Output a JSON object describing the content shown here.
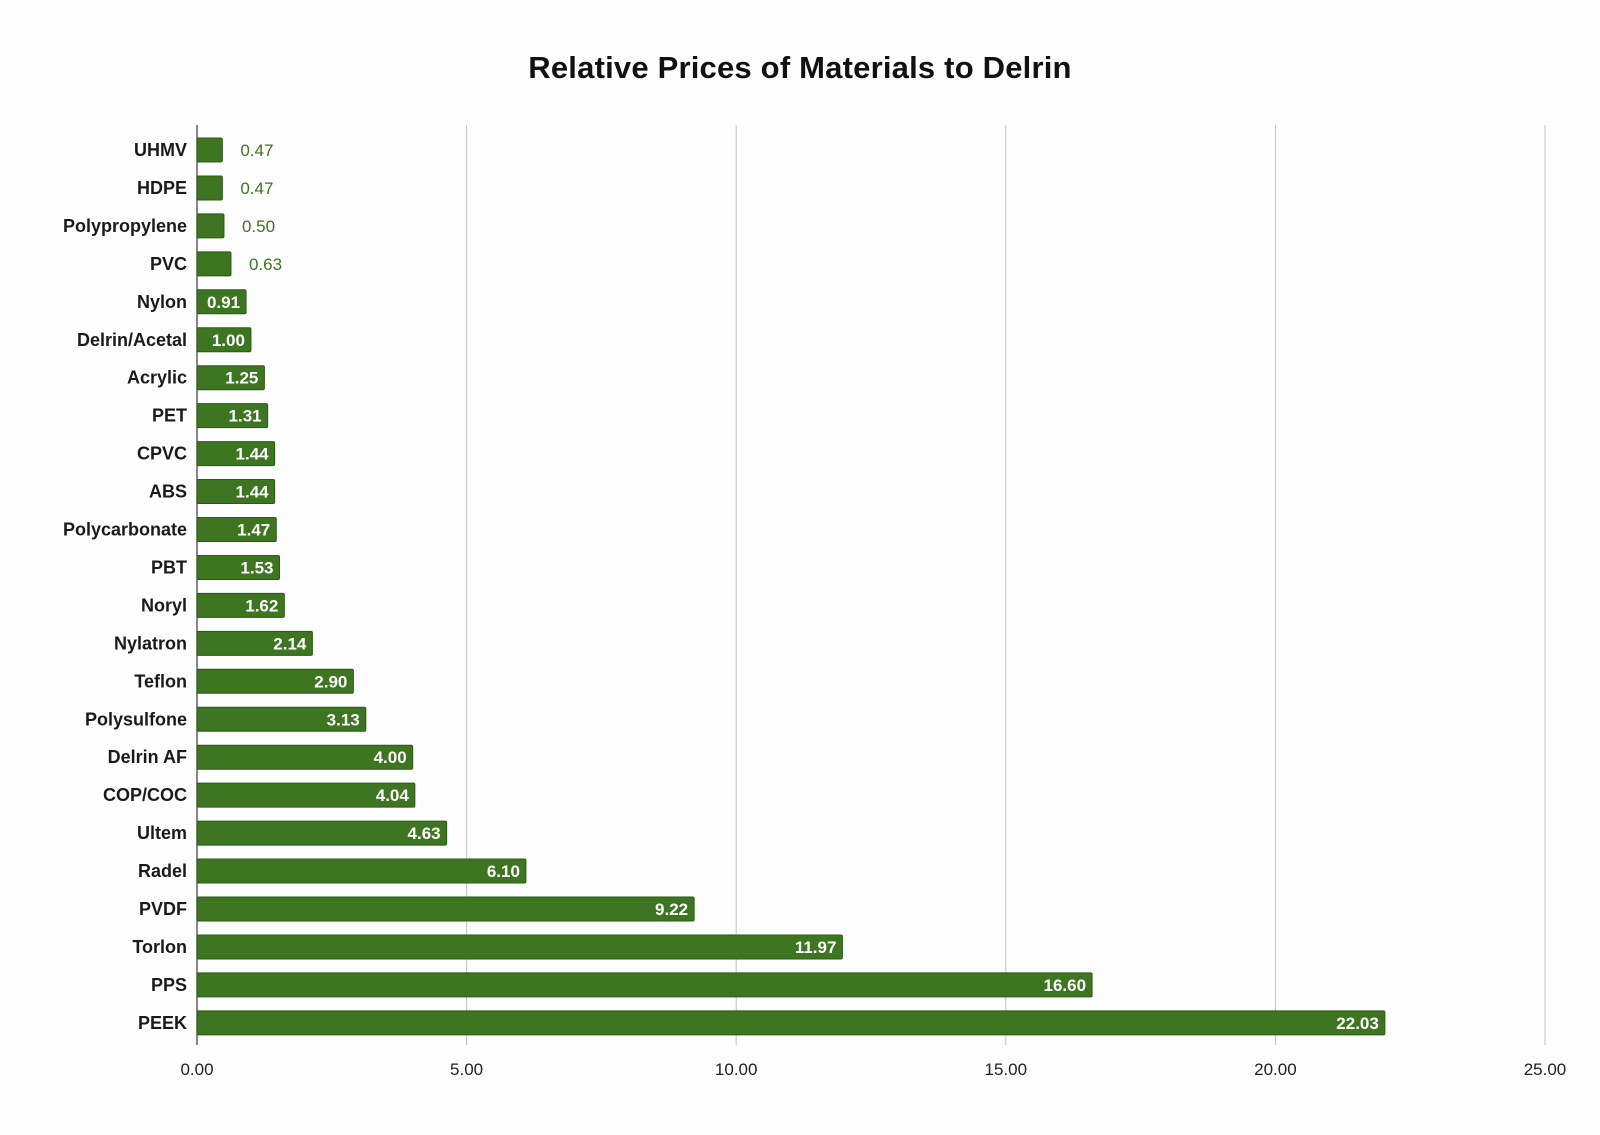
{
  "chart_data": {
    "type": "bar",
    "orientation": "horizontal",
    "title": "Relative Prices of Materials to Delrin",
    "xlabel": "",
    "ylabel": "",
    "xlim": [
      0,
      25
    ],
    "x_ticks": [
      "0.00",
      "5.00",
      "10.00",
      "15.00",
      "20.00",
      "25.00"
    ],
    "grid": "vertical",
    "legend": "none",
    "categories": [
      "UHMV",
      "HDPE",
      "Polypropylene",
      "PVC",
      "Nylon",
      "Delrin/Acetal",
      "Acrylic",
      "PET",
      "CPVC",
      "ABS",
      "Polycarbonate",
      "PBT",
      "Noryl",
      "Nylatron",
      "Teflon",
      "Polysulfone",
      "Delrin AF",
      "COP/COC",
      "Ultem",
      "Radel",
      "PVDF",
      "Torlon",
      "PPS",
      "PEEK"
    ],
    "values": [
      0.47,
      0.47,
      0.5,
      0.63,
      0.91,
      1.0,
      1.25,
      1.31,
      1.44,
      1.44,
      1.47,
      1.53,
      1.62,
      2.14,
      2.9,
      3.13,
      4.0,
      4.04,
      4.63,
      6.1,
      9.22,
      11.97,
      16.6,
      22.03
    ],
    "value_labels": [
      "0.47",
      "0.47",
      "0.50",
      "0.63",
      "0.91",
      "1.00",
      "1.25",
      "1.31",
      "1.44",
      "1.44",
      "1.47",
      "1.53",
      "1.62",
      "2.14",
      "2.90",
      "3.13",
      "4.00",
      "4.04",
      "4.63",
      "6.10",
      "9.22",
      "11.97",
      "16.60",
      "22.03"
    ],
    "colors": {
      "bar": "#3d7520",
      "bar_stroke": "#2c5a14",
      "label_inside": "#ffffff",
      "label_outside": "#3d7520",
      "grid": "#c4c4c4",
      "axis": "#555555"
    }
  }
}
